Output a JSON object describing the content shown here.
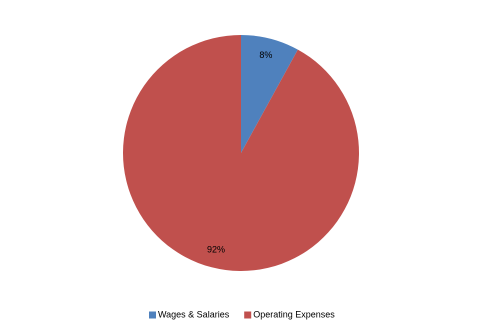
{
  "chart_data": {
    "type": "pie",
    "categories": [
      "Wages & Salaries",
      "Operating Expenses"
    ],
    "values": [
      8,
      92
    ],
    "value_labels": [
      "8%",
      "92%"
    ],
    "colors": [
      "#4f81bd",
      "#c0504d"
    ],
    "legend": "bottom"
  }
}
